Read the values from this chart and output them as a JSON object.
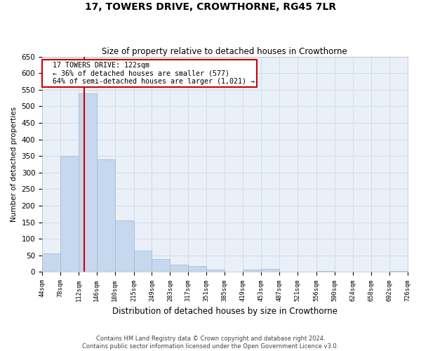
{
  "title": "17, TOWERS DRIVE, CROWTHORNE, RG45 7LR",
  "subtitle": "Size of property relative to detached houses in Crowthorne",
  "xlabel": "Distribution of detached houses by size in Crowthorne",
  "ylabel": "Number of detached properties",
  "bar_values": [
    55,
    350,
    540,
    340,
    155,
    65,
    40,
    22,
    18,
    8,
    2,
    8,
    10,
    1,
    1,
    4,
    1,
    1,
    1,
    4
  ],
  "bin_edges": [
    44,
    78,
    112,
    146,
    180,
    215,
    249,
    283,
    317,
    351,
    385,
    419,
    453,
    487,
    521,
    556,
    590,
    624,
    658,
    692,
    726
  ],
  "tick_labels": [
    "44sqm",
    "78sqm",
    "112sqm",
    "146sqm",
    "180sqm",
    "215sqm",
    "249sqm",
    "283sqm",
    "317sqm",
    "351sqm",
    "385sqm",
    "419sqm",
    "453sqm",
    "487sqm",
    "521sqm",
    "556sqm",
    "590sqm",
    "624sqm",
    "658sqm",
    "692sqm",
    "726sqm"
  ],
  "bar_color": "#c5d8ed",
  "bar_edge_color": "#a0b8d0",
  "vline_x": 122,
  "vline_color": "#cc0000",
  "annotation_text": "  17 TOWERS DRIVE: 122sqm\n  ← 36% of detached houses are smaller (577)\n  64% of semi-detached houses are larger (1,021) →",
  "annotation_box_color": "#cc0000",
  "ylim": [
    0,
    650
  ],
  "yticks": [
    0,
    50,
    100,
    150,
    200,
    250,
    300,
    350,
    400,
    450,
    500,
    550,
    600,
    650
  ],
  "grid_color": "#d0d8e8",
  "bg_color": "#eaf0f8",
  "footer_line1": "Contains HM Land Registry data © Crown copyright and database right 2024.",
  "footer_line2": "Contains public sector information licensed under the Open Government Licence v3.0."
}
